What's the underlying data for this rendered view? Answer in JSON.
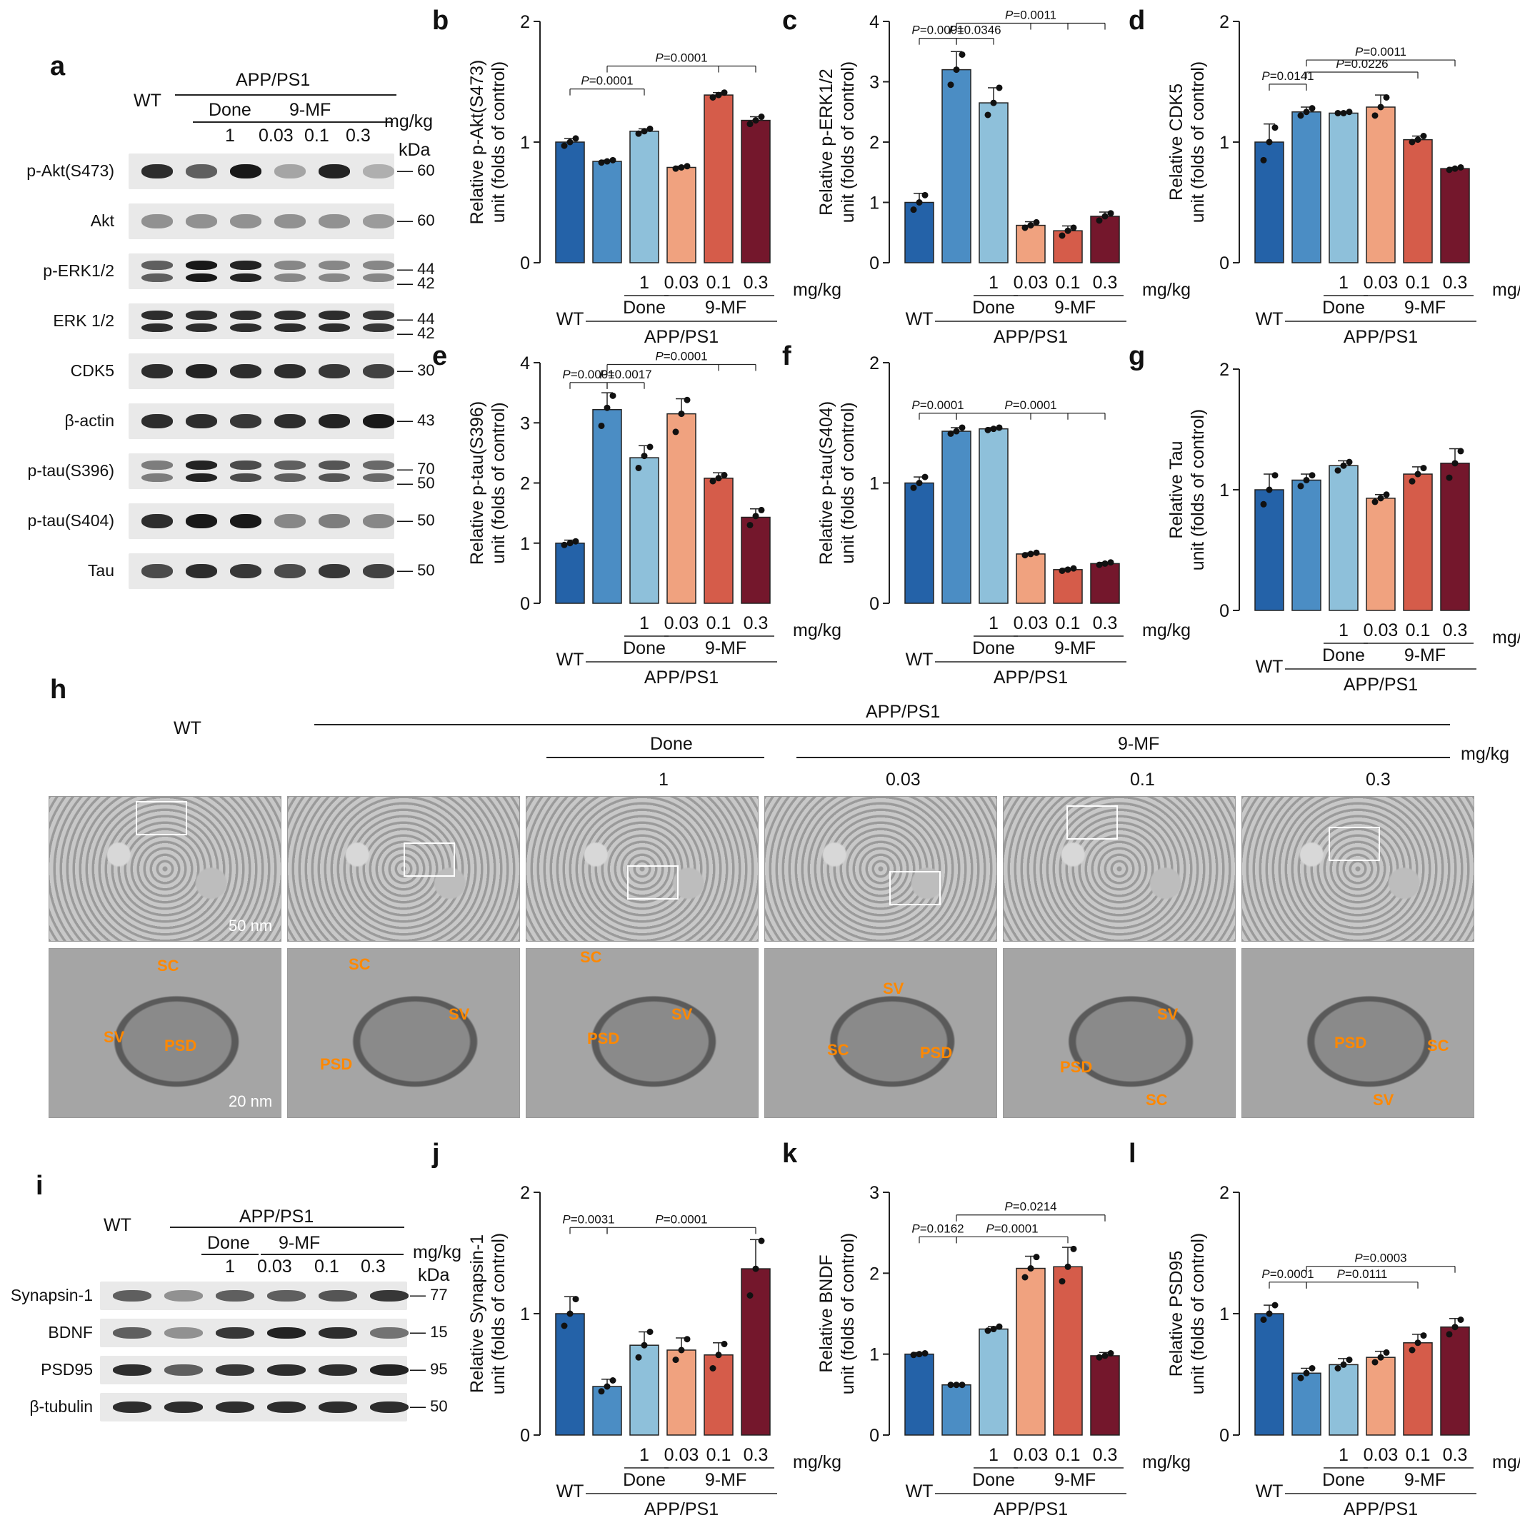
{
  "panel_labels": {
    "a": "a",
    "b": "b",
    "c": "c",
    "d": "d",
    "e": "e",
    "f": "f",
    "g": "g",
    "h": "h",
    "i": "i",
    "j": "j",
    "k": "k",
    "l": "l"
  },
  "blot_a": {
    "wt": "WT",
    "group": "APP/PS1",
    "done": "Done",
    "mf": "9-MF",
    "unit": "mg/kg",
    "kda": "kDa",
    "doses": [
      "1",
      "0.03",
      "0.1",
      "0.3"
    ],
    "rows": [
      {
        "label": "p-Akt(S473)",
        "markers": [
          "60"
        ],
        "intensity": [
          0.85,
          0.6,
          0.95,
          0.25,
          0.9,
          0.2
        ],
        "double": false
      },
      {
        "label": "Akt",
        "markers": [
          "60"
        ],
        "intensity": [
          0.35,
          0.35,
          0.35,
          0.35,
          0.35,
          0.3
        ],
        "double": false
      },
      {
        "label": "p-ERK1/2",
        "markers": [
          "44",
          "42"
        ],
        "intensity": [
          0.6,
          0.95,
          0.9,
          0.4,
          0.4,
          0.4
        ],
        "double": true
      },
      {
        "label": "ERK 1/2",
        "markers": [
          "44",
          "42"
        ],
        "intensity": [
          0.85,
          0.85,
          0.85,
          0.85,
          0.85,
          0.8
        ],
        "double": true
      },
      {
        "label": "CDK5",
        "markers": [
          "30"
        ],
        "intensity": [
          0.85,
          0.9,
          0.85,
          0.85,
          0.8,
          0.75
        ],
        "double": false
      },
      {
        "label": "β-actin",
        "markers": [
          "43"
        ],
        "intensity": [
          0.85,
          0.85,
          0.8,
          0.85,
          0.9,
          0.95
        ],
        "double": false
      },
      {
        "label": "p-tau(S396)",
        "markers": [
          "70",
          "50"
        ],
        "intensity": [
          0.45,
          0.9,
          0.7,
          0.6,
          0.65,
          0.55
        ],
        "double": true
      },
      {
        "label": "p-tau(S404)",
        "markers": [
          "50"
        ],
        "intensity": [
          0.85,
          0.95,
          0.95,
          0.4,
          0.45,
          0.4
        ],
        "double": false
      },
      {
        "label": "Tau",
        "markers": [
          "50"
        ],
        "intensity": [
          0.7,
          0.85,
          0.8,
          0.7,
          0.8,
          0.75
        ],
        "double": false
      }
    ]
  },
  "blot_i": {
    "wt": "WT",
    "group": "APP/PS1",
    "done": "Done",
    "mf": "9-MF",
    "unit": "mg/kg",
    "kda": "kDa",
    "doses": [
      "1",
      "0.03",
      "0.1",
      "0.3"
    ],
    "rows": [
      {
        "label": "Synapsin-1",
        "markers": [
          "77"
        ],
        "intensity": [
          0.6,
          0.35,
          0.6,
          0.6,
          0.65,
          0.8
        ]
      },
      {
        "label": "BDNF",
        "markers": [
          "15"
        ],
        "intensity": [
          0.6,
          0.35,
          0.8,
          0.9,
          0.85,
          0.5
        ]
      },
      {
        "label": "PSD95",
        "markers": [
          "95"
        ],
        "intensity": [
          0.85,
          0.6,
          0.8,
          0.85,
          0.85,
          0.9
        ]
      },
      {
        "label": "β-tubulin",
        "markers": [
          "50"
        ],
        "intensity": [
          0.85,
          0.85,
          0.85,
          0.85,
          0.85,
          0.85
        ]
      }
    ]
  },
  "panel_h": {
    "wt": "WT",
    "group": "APP/PS1",
    "done": "Done",
    "mf": "9-MF",
    "unit": "mg/kg",
    "doses": [
      "1",
      "0.03",
      "0.1",
      "0.3"
    ],
    "scale_top": "50 nm",
    "scale_bottom": "20 nm",
    "annotations": [
      [
        "SC",
        "SV",
        "PSD"
      ],
      [
        "SC",
        "SV",
        "PSD"
      ],
      [
        "SC",
        "PSD",
        "SV"
      ],
      [
        "SV",
        "SC",
        "PSD"
      ],
      [
        "SV",
        "PSD",
        "SC"
      ],
      [
        "PSD",
        "SC",
        "SV"
      ]
    ]
  },
  "colors": [
    "#2462a8",
    "#4b8dc4",
    "#8ec0da",
    "#f0a27f",
    "#d55c4a",
    "#74172c"
  ],
  "chart_data": [
    {
      "id": "b",
      "type": "bar",
      "ylabel": [
        "Relative p-Akt(S473)",
        "unit (folds of control)"
      ],
      "ylim": [
        0,
        2
      ],
      "yticks": [
        0,
        1,
        2
      ],
      "xlabels": {
        "wt": "WT",
        "doses": [
          "1",
          "0.03",
          "0.1",
          "0.3"
        ],
        "unit": "mg/kg",
        "done": "Done",
        "mf": "9-MF",
        "group": "APP/PS1"
      },
      "values": [
        1.0,
        0.84,
        1.09,
        0.79,
        1.39,
        1.18
      ],
      "errors": [
        0.03,
        0.01,
        0.02,
        0.01,
        0.02,
        0.03
      ],
      "points": [
        [
          0.97,
          1.0,
          1.03
        ],
        [
          0.83,
          0.84,
          0.85
        ],
        [
          1.07,
          1.09,
          1.11
        ],
        [
          0.78,
          0.79,
          0.8
        ],
        [
          1.37,
          1.39,
          1.41
        ],
        [
          1.15,
          1.18,
          1.21
        ]
      ],
      "brackets": [
        {
          "text": "=0.0001",
          "from": 0,
          "to": [
            2
          ],
          "y": 1.44
        },
        {
          "text": "=0.0001",
          "from": 1,
          "to": [
            4,
            5
          ],
          "y": 1.63
        }
      ]
    },
    {
      "id": "c",
      "type": "bar",
      "ylabel": [
        "Relative p-ERK1/2",
        "unit (folds of control)"
      ],
      "ylim": [
        0,
        4
      ],
      "yticks": [
        0,
        1,
        2,
        3,
        4
      ],
      "xlabels": {
        "wt": "WT",
        "doses": [
          "1",
          "0.03",
          "0.1",
          "0.3"
        ],
        "unit": "mg/kg",
        "done": "Done",
        "mf": "9-MF",
        "group": "APP/PS1"
      },
      "values": [
        1.0,
        3.2,
        2.65,
        0.62,
        0.53,
        0.77
      ],
      "errors": [
        0.15,
        0.3,
        0.25,
        0.06,
        0.08,
        0.07
      ],
      "points": [
        [
          0.88,
          1.0,
          1.12
        ],
        [
          2.95,
          3.2,
          3.45
        ],
        [
          2.45,
          2.65,
          2.9
        ],
        [
          0.58,
          0.62,
          0.67
        ],
        [
          0.45,
          0.53,
          0.58
        ],
        [
          0.7,
          0.77,
          0.82
        ]
      ],
      "brackets": [
        {
          "text": "=0.0001",
          "from": 0,
          "to": [
            1
          ],
          "y": 3.72
        },
        {
          "text": "=0.0346",
          "from": 1,
          "to": [
            2
          ],
          "y": 3.72
        },
        {
          "text": "=0.0011",
          "from": 1,
          "to": [
            3,
            4,
            5
          ],
          "y": 3.97
        }
      ]
    },
    {
      "id": "d",
      "type": "bar",
      "ylabel": [
        "Relative CDK5",
        "unit (folds of control)"
      ],
      "ylim": [
        0,
        2
      ],
      "yticks": [
        0,
        1,
        2
      ],
      "xlabels": {
        "wt": "WT",
        "doses": [
          "1",
          "0.03",
          "0.1",
          "0.3"
        ],
        "unit": "mg/kg",
        "done": "Done",
        "mf": "9-MF",
        "group": "APP/PS1"
      },
      "values": [
        1.0,
        1.25,
        1.24,
        1.29,
        1.02,
        0.78
      ],
      "errors": [
        0.15,
        0.04,
        0.01,
        0.1,
        0.03,
        0.01
      ],
      "points": [
        [
          0.85,
          1.0,
          1.12
        ],
        [
          1.22,
          1.25,
          1.28
        ],
        [
          1.24,
          1.24,
          1.25
        ],
        [
          1.22,
          1.29,
          1.37
        ],
        [
          1.0,
          1.02,
          1.05
        ],
        [
          0.77,
          0.78,
          0.79
        ]
      ],
      "brackets": [
        {
          "text": "=0.0141",
          "from": 0,
          "to": [
            1
          ],
          "y": 1.48
        },
        {
          "text": "=0.0226",
          "from": 1,
          "to": [
            4
          ],
          "y": 1.58
        },
        {
          "text": "=0.0011",
          "from": 1,
          "to": [
            5
          ],
          "y": 1.68
        }
      ]
    },
    {
      "id": "e",
      "type": "bar",
      "ylabel": [
        "Relative p-tau(S396)",
        "unit (folds of control)"
      ],
      "ylim": [
        0,
        4
      ],
      "yticks": [
        0,
        1,
        2,
        3,
        4
      ],
      "xlabels": {
        "wt": "WT",
        "doses": [
          "1",
          "0.03",
          "0.1",
          "0.3"
        ],
        "unit": "mg/kg",
        "done": "Done",
        "mf": "9-MF",
        "group": "APP/PS1"
      },
      "values": [
        1.0,
        3.22,
        2.42,
        3.15,
        2.08,
        1.43
      ],
      "errors": [
        0.05,
        0.28,
        0.2,
        0.25,
        0.09,
        0.14
      ],
      "points": [
        [
          0.97,
          1.0,
          1.03
        ],
        [
          2.95,
          3.25,
          3.45
        ],
        [
          2.25,
          2.45,
          2.6
        ],
        [
          2.85,
          3.15,
          3.38
        ],
        [
          2.03,
          2.08,
          2.13
        ],
        [
          1.3,
          1.45,
          1.55
        ]
      ],
      "brackets": [
        {
          "text": "=0.0001",
          "from": 0,
          "to": [
            1
          ],
          "y": 3.67
        },
        {
          "text": "=0.0017",
          "from": 1,
          "to": [
            2
          ],
          "y": 3.67
        },
        {
          "text": "=0.0001",
          "from": 1,
          "to": [
            4,
            5
          ],
          "y": 3.97
        }
      ]
    },
    {
      "id": "f",
      "type": "bar",
      "ylabel": [
        "Relative p-tau(S404)",
        "unit (folds of control)"
      ],
      "ylim": [
        0,
        2
      ],
      "yticks": [
        0,
        1,
        2
      ],
      "xlabels": {
        "wt": "WT",
        "doses": [
          "1",
          "0.03",
          "0.1",
          "0.3"
        ],
        "unit": "mg/kg",
        "done": "Done",
        "mf": "9-MF",
        "group": "APP/PS1"
      },
      "values": [
        1.0,
        1.43,
        1.45,
        0.41,
        0.28,
        0.33
      ],
      "errors": [
        0.05,
        0.03,
        0.01,
        0.01,
        0.01,
        0.01
      ],
      "points": [
        [
          0.96,
          1.0,
          1.05
        ],
        [
          1.41,
          1.43,
          1.46
        ],
        [
          1.44,
          1.45,
          1.46
        ],
        [
          0.4,
          0.41,
          0.42
        ],
        [
          0.27,
          0.28,
          0.29
        ],
        [
          0.32,
          0.33,
          0.34
        ]
      ],
      "brackets": [
        {
          "text": "=0.0001",
          "from": 0,
          "to": [
            1
          ],
          "y": 1.58
        },
        {
          "text": "=0.0001",
          "from": 1,
          "to": [
            3,
            4,
            5
          ],
          "y": 1.58
        }
      ]
    },
    {
      "id": "g",
      "type": "bar",
      "ylabel": [
        "Relative Tau",
        "unit (folds of control)"
      ],
      "ylim": [
        0,
        2
      ],
      "yticks": [
        0,
        1,
        2
      ],
      "xlabels": {
        "wt": "WT",
        "doses": [
          "1",
          "0.03",
          "0.1",
          "0.3"
        ],
        "unit": "mg/kg",
        "done": "Done",
        "mf": "9-MF",
        "group": "APP/PS1"
      },
      "values": [
        1.0,
        1.08,
        1.2,
        0.93,
        1.13,
        1.22
      ],
      "errors": [
        0.13,
        0.05,
        0.04,
        0.03,
        0.06,
        0.12
      ],
      "points": [
        [
          0.88,
          1.0,
          1.12
        ],
        [
          1.03,
          1.08,
          1.12
        ],
        [
          1.16,
          1.2,
          1.23
        ],
        [
          0.9,
          0.93,
          0.96
        ],
        [
          1.07,
          1.13,
          1.18
        ],
        [
          1.1,
          1.22,
          1.32
        ]
      ],
      "brackets": []
    },
    {
      "id": "j",
      "type": "bar",
      "ylabel": [
        "Relative Synapsin-1",
        "unit (folds of control)"
      ],
      "ylim": [
        0,
        2
      ],
      "yticks": [
        0,
        1,
        2
      ],
      "xlabels": {
        "wt": "WT",
        "doses": [
          "1",
          "0.03",
          "0.1",
          "0.3"
        ],
        "unit": "mg/kg",
        "done": "Done",
        "mf": "9-MF",
        "group": "APP/PS1"
      },
      "values": [
        1.0,
        0.4,
        0.74,
        0.7,
        0.66,
        1.37
      ],
      "errors": [
        0.14,
        0.06,
        0.11,
        0.1,
        0.1,
        0.24
      ],
      "points": [
        [
          0.9,
          1.0,
          1.12
        ],
        [
          0.36,
          0.4,
          0.45
        ],
        [
          0.64,
          0.74,
          0.85
        ],
        [
          0.62,
          0.7,
          0.79
        ],
        [
          0.55,
          0.66,
          0.75
        ],
        [
          1.15,
          1.37,
          1.6
        ]
      ],
      "brackets": [
        {
          "text": "=0.0031",
          "from": 0,
          "to": [
            1
          ],
          "y": 1.71
        },
        {
          "text": "=0.0001",
          "from": 1,
          "to": [
            5
          ],
          "y": 1.71
        }
      ]
    },
    {
      "id": "k",
      "type": "bar",
      "ylabel": [
        "Relative BNDF",
        "unit (folds of control)"
      ],
      "ylim": [
        0,
        3
      ],
      "yticks": [
        0,
        1,
        2,
        3
      ],
      "xlabels": {
        "wt": "WT",
        "doses": [
          "1",
          "0.03",
          "0.1",
          "0.3"
        ],
        "unit": "mg/kg",
        "done": "Done",
        "mf": "9-MF",
        "group": "APP/PS1"
      },
      "values": [
        1.0,
        0.62,
        1.31,
        2.06,
        2.08,
        0.98
      ],
      "errors": [
        0.02,
        0.01,
        0.03,
        0.15,
        0.24,
        0.04
      ],
      "points": [
        [
          0.99,
          1.0,
          1.01
        ],
        [
          0.62,
          0.62,
          0.62
        ],
        [
          1.29,
          1.31,
          1.34
        ],
        [
          1.95,
          2.06,
          2.2
        ],
        [
          1.9,
          2.08,
          2.3
        ],
        [
          0.96,
          0.98,
          1.01
        ]
      ],
      "brackets": [
        {
          "text": "=0.0162",
          "from": 0,
          "to": [
            1
          ],
          "y": 2.45
        },
        {
          "text": "=0.0001",
          "from": 1,
          "to": [
            4
          ],
          "y": 2.45
        },
        {
          "text": "=0.0214",
          "from": 1,
          "to": [
            5
          ],
          "y": 2.72
        }
      ]
    },
    {
      "id": "l",
      "type": "bar",
      "ylabel": [
        "Relative PSD95",
        "unit (folds of control)"
      ],
      "ylim": [
        0,
        2
      ],
      "yticks": [
        0,
        1,
        2
      ],
      "xlabels": {
        "wt": "WT",
        "doses": [
          "1",
          "0.03",
          "0.1",
          "0.3"
        ],
        "unit": "mg/kg",
        "done": "Done",
        "mf": "9-MF",
        "group": "APP/PS1"
      },
      "values": [
        1.0,
        0.51,
        0.58,
        0.64,
        0.76,
        0.89
      ],
      "errors": [
        0.07,
        0.04,
        0.05,
        0.05,
        0.07,
        0.07
      ],
      "points": [
        [
          0.95,
          1.0,
          1.07
        ],
        [
          0.47,
          0.51,
          0.55
        ],
        [
          0.55,
          0.58,
          0.62
        ],
        [
          0.6,
          0.64,
          0.68
        ],
        [
          0.7,
          0.76,
          0.82
        ],
        [
          0.83,
          0.89,
          0.95
        ]
      ],
      "brackets": [
        {
          "text": "=0.0001",
          "from": 0,
          "to": [
            1
          ],
          "y": 1.26
        },
        {
          "text": "=0.0111",
          "from": 1,
          "to": [
            4
          ],
          "y": 1.26
        },
        {
          "text": "=0.0003",
          "from": 1,
          "to": [
            5
          ],
          "y": 1.39
        }
      ]
    }
  ]
}
